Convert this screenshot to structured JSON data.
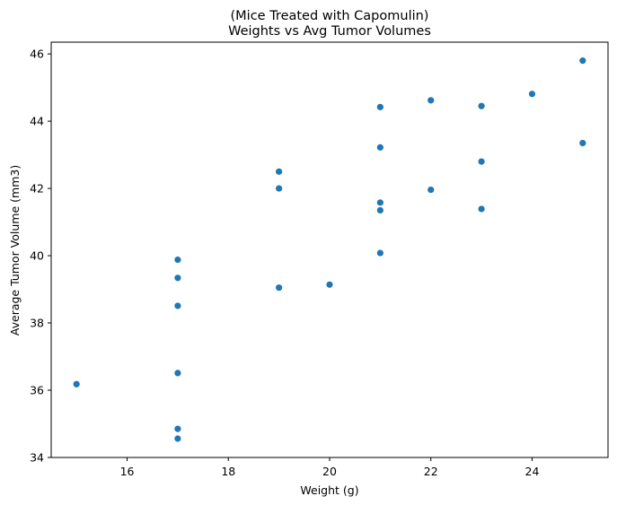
{
  "chart_data": {
    "type": "scatter",
    "title": "(Mice Treated with Capomulin)",
    "subtitle": "Weights vs Avg Tumor Volumes",
    "xlabel": "Weight (g)",
    "ylabel": "Average Tumor Volume (mm3)",
    "xlim": [
      14.5,
      25.5
    ],
    "ylim": [
      34.0,
      46.35
    ],
    "xticks": [
      16,
      18,
      20,
      22,
      24
    ],
    "yticks": [
      34,
      36,
      38,
      40,
      42,
      44,
      46
    ],
    "grid": false,
    "legend": "none",
    "marker_color": "#1f77b4",
    "points": [
      {
        "x": 15,
        "y": 36.18
      },
      {
        "x": 17,
        "y": 39.88
      },
      {
        "x": 17,
        "y": 39.34
      },
      {
        "x": 17,
        "y": 38.51
      },
      {
        "x": 17,
        "y": 36.51
      },
      {
        "x": 17,
        "y": 34.85
      },
      {
        "x": 17,
        "y": 34.56
      },
      {
        "x": 19,
        "y": 42.5
      },
      {
        "x": 19,
        "y": 42.0
      },
      {
        "x": 19,
        "y": 39.05
      },
      {
        "x": 20,
        "y": 39.14
      },
      {
        "x": 21,
        "y": 44.42
      },
      {
        "x": 21,
        "y": 43.22
      },
      {
        "x": 21,
        "y": 41.58
      },
      {
        "x": 21,
        "y": 41.35
      },
      {
        "x": 21,
        "y": 40.08
      },
      {
        "x": 22,
        "y": 44.62
      },
      {
        "x": 22,
        "y": 41.96
      },
      {
        "x": 23,
        "y": 44.45
      },
      {
        "x": 23,
        "y": 42.8
      },
      {
        "x": 23,
        "y": 41.39
      },
      {
        "x": 24,
        "y": 44.81
      },
      {
        "x": 25,
        "y": 45.8
      },
      {
        "x": 25,
        "y": 43.35
      }
    ]
  }
}
